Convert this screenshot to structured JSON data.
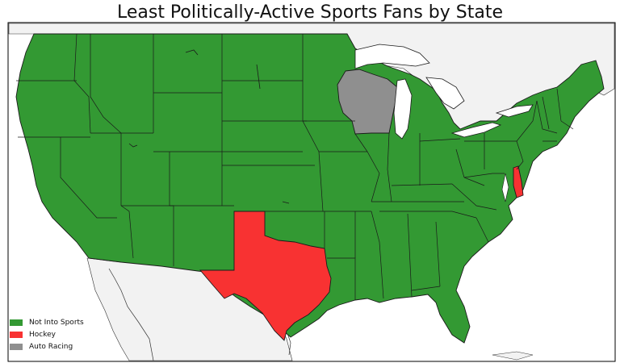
{
  "title": "Least Politically-Active Sports Fans by State",
  "colors": {
    "not_into_sports": "#339933",
    "hockey": "#f83232",
    "auto_racing": "#8f8f8f",
    "land_other": "#f2f2f2",
    "water": "#ffffff",
    "borders": "#1a1a1a"
  },
  "legend": [
    {
      "label": "Not Into Sports",
      "color": "#339933"
    },
    {
      "label": "Hockey",
      "color": "#f83232"
    },
    {
      "label": "Auto Racing",
      "color": "#8f8f8f"
    }
  ],
  "state_categories": {
    "Texas": "Hockey",
    "Delaware": "Hockey",
    "Wisconsin": "Auto Racing",
    "all_other_states": "Not Into Sports"
  }
}
